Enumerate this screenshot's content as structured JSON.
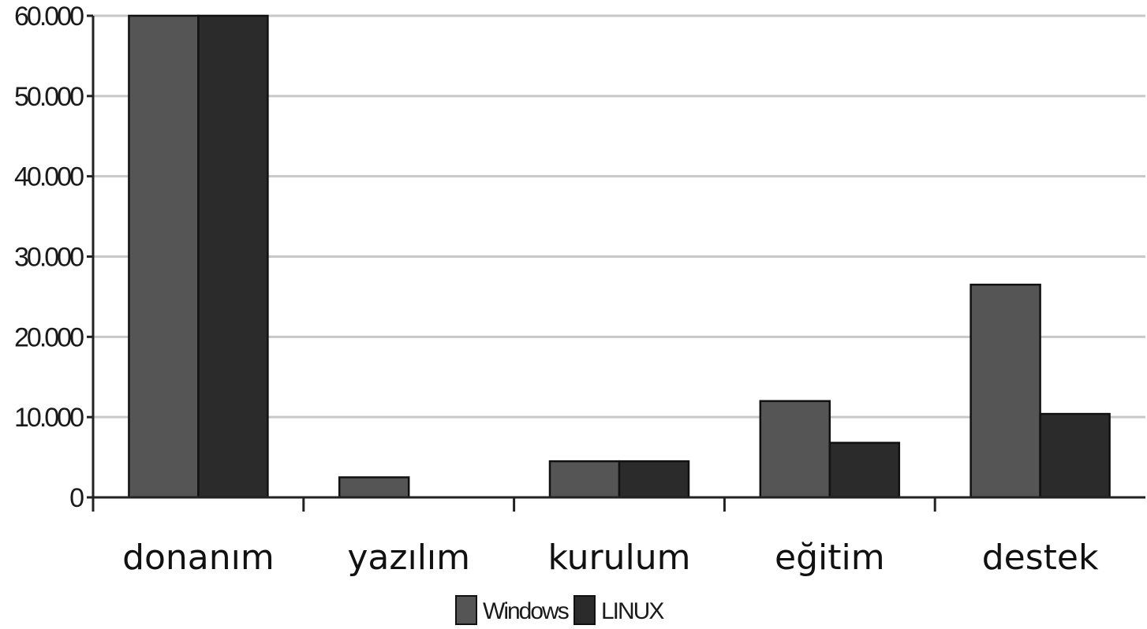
{
  "chart_data": {
    "type": "bar",
    "categories": [
      "donanım",
      "yazılım",
      "kurulum",
      "eğitim",
      "destek"
    ],
    "series": [
      {
        "name": "Windows",
        "color": "#555555",
        "values": [
          60000,
          2500,
          4500,
          12000,
          26500
        ]
      },
      {
        "name": "LINUX",
        "color": "#2b2b2b",
        "values": [
          60000,
          0,
          4500,
          6800,
          10400
        ]
      }
    ],
    "y_ticks": [
      "0",
      "10.000",
      "20.000",
      "30.000",
      "40.000",
      "50.000",
      "60.000"
    ],
    "ylim": [
      0,
      60000
    ],
    "grid": true,
    "legend": "bottom-center"
  }
}
